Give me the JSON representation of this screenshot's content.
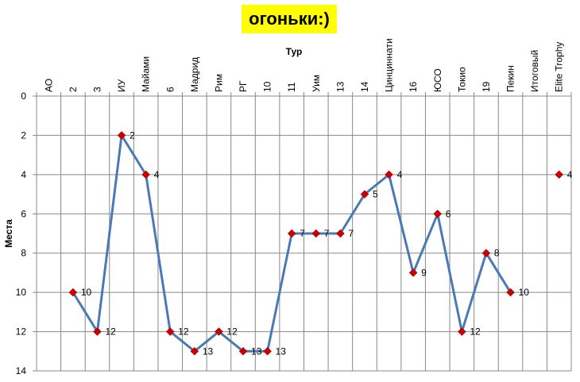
{
  "chart_data": {
    "type": "line",
    "title": "огоньки:)",
    "xlabel": "Тур",
    "ylabel": "Места",
    "categories": [
      "АО",
      "2",
      "3",
      "ИУ",
      "Майами",
      "6",
      "Мадрид",
      "Рим",
      "РГ",
      "10",
      "11",
      "Уим",
      "13",
      "14",
      "Цинциннати",
      "16",
      "ЮСО",
      "Токио",
      "19",
      "Пекин",
      "Итоговый",
      "Elite Trophy"
    ],
    "series": [
      {
        "values": [
          null,
          10,
          12,
          2,
          4,
          12,
          13,
          12,
          13,
          13,
          7,
          7,
          7,
          5,
          4,
          9,
          6,
          12,
          8,
          10,
          null,
          4
        ]
      }
    ],
    "ylim": [
      0,
      14
    ],
    "yticks": [
      0,
      2,
      4,
      6,
      8,
      10,
      12,
      14
    ],
    "y_reversed": true,
    "x_axis_position": "top",
    "grid": true,
    "data_labels": true,
    "colors": {
      "line": "#4a7ab5",
      "marker": "#cc0000",
      "title_bg": "#ffff00",
      "grid": "#888888"
    }
  }
}
